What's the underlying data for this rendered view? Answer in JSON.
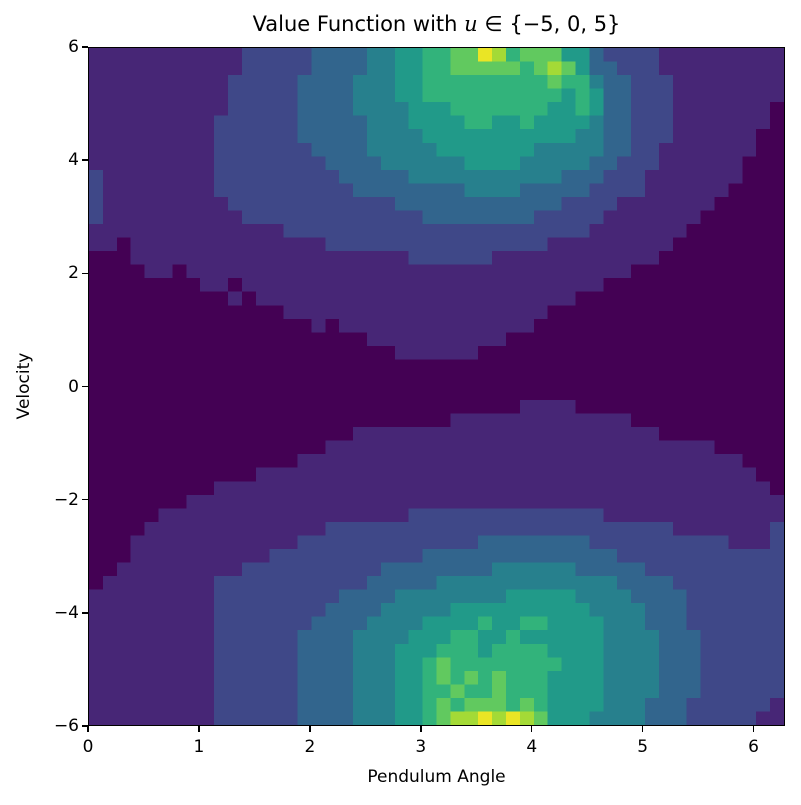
{
  "chart_data": {
    "type": "heatmap",
    "title": "Value Function with u ∈ {−5, 0, 5}",
    "title_parts": {
      "prefix": "Value Function with ",
      "math": "u",
      "suffix": " ∈ {−5, 0, 5}"
    },
    "xlabel": "Pendulum Angle",
    "ylabel": "Velocity",
    "xlim": [
      0,
      6.283
    ],
    "ylim": [
      -6,
      6
    ],
    "xticks": [
      "0",
      "1",
      "2",
      "3",
      "4",
      "5",
      "6"
    ],
    "xtick_values": [
      0,
      1,
      2,
      3,
      4,
      5,
      6
    ],
    "yticks": [
      "6",
      "4",
      "2",
      "0",
      "−2",
      "−4",
      "−6"
    ],
    "ytick_values": [
      6,
      4,
      2,
      0,
      -2,
      -4,
      -6
    ],
    "colormap": "viridis",
    "grid": false,
    "legend": null,
    "grid_size": [
      50,
      50
    ],
    "z_levels_note": "rows top (velocity=6) to bottom (velocity=-6); columns angle 0 to 2π; digit 0-9 = relative value level",
    "z_levels": [
      "11111111111222223333445566779867775532222111111111",
      "11111111111222223333445566777776787533222111111111",
      "11111111112222233334445566666666676643322211111111",
      "11111111112222233334445566666666665653322211111111",
      "11111111112222233334444555666666655653322211111110",
      "11111111122222233333444555566556555543322211111110",
      "11111111122222233333444455555555555443322211111100",
      "11111111122222223333444445555555444443322111111100",
      "11111111122222222333344444455554444433222111111000",
      "21111111122222222233333444444444443332221111111000",
      "21111111122222222223333333344443333322221111110000",
      "21111111112222222222223333333333332222111111100000",
      "21111111111222222222222233333333222221111111000000",
      "11111111111111222222222222222222222211111110000000",
      "11011111111111111222222222222222211111111100000000",
      "00011111111111111111111222222111111111111000000000",
      "00001101111111111111111111111111111111100000000000",
      "00000000110111111111111111111111111110000000000000",
      "00000000001011111111111111111111111000000000000000",
      "00000000000000111111111111111111100000000000000000",
      "00000000000000001011111111111111000000000000000000",
      "00000000000000000000111111111100000000000000000000",
      "00000000000000000000001111110000000000000000000000",
      "00000000000000000000000000000000000000000000000000",
      "00000000000000000000000000000000000000000000000000",
      "00000000000000000000000000000000000000000000000000",
      "00000000000000000000000000000001111000000000000000",
      "00000000000000000000000000111111111111100000000000",
      "00000000000000000001111111111111111111111000000000",
      "00000000000000000111111111111111111111111111100000",
      "00000000000000011111111111111111111111111111111000",
      "00000000000011111111111111111111111111111111111100",
      "00000000011111111111111111111111111111111111111110",
      "00000001111111111111111111111111111111111111111111",
      "00000111111111111111111222222222222221111111111111",
      "00001111111111111222222222222222222222222211111112",
      "00011111111111122222222222223333333322222222221112",
      "00011111111112222222222233333333333333222222222222",
      "00111111111222222222233333333444444333332222222222",
      "01111111122222222222333334444444444444333322222222",
      "11111111122222222233334444444455555444433332222222",
      "11111111122222222333344444555555555544443332222222",
      "11111111122222223333444455556556655554443332222222",
      "11111111122222233334444555665565555554444333222222",
      "11111111122222233334445556665666655554444333222222",
      "11111111122222233334445567666666665554444333222222",
      "11111111122222233334445567676766655554444333222222",
      "11111111122222233334445566766766655554444333222222",
      "11111111122222233334445567677767655554443332222221",
      "11111111122222233334445567889898755544443332222211"
    ]
  }
}
